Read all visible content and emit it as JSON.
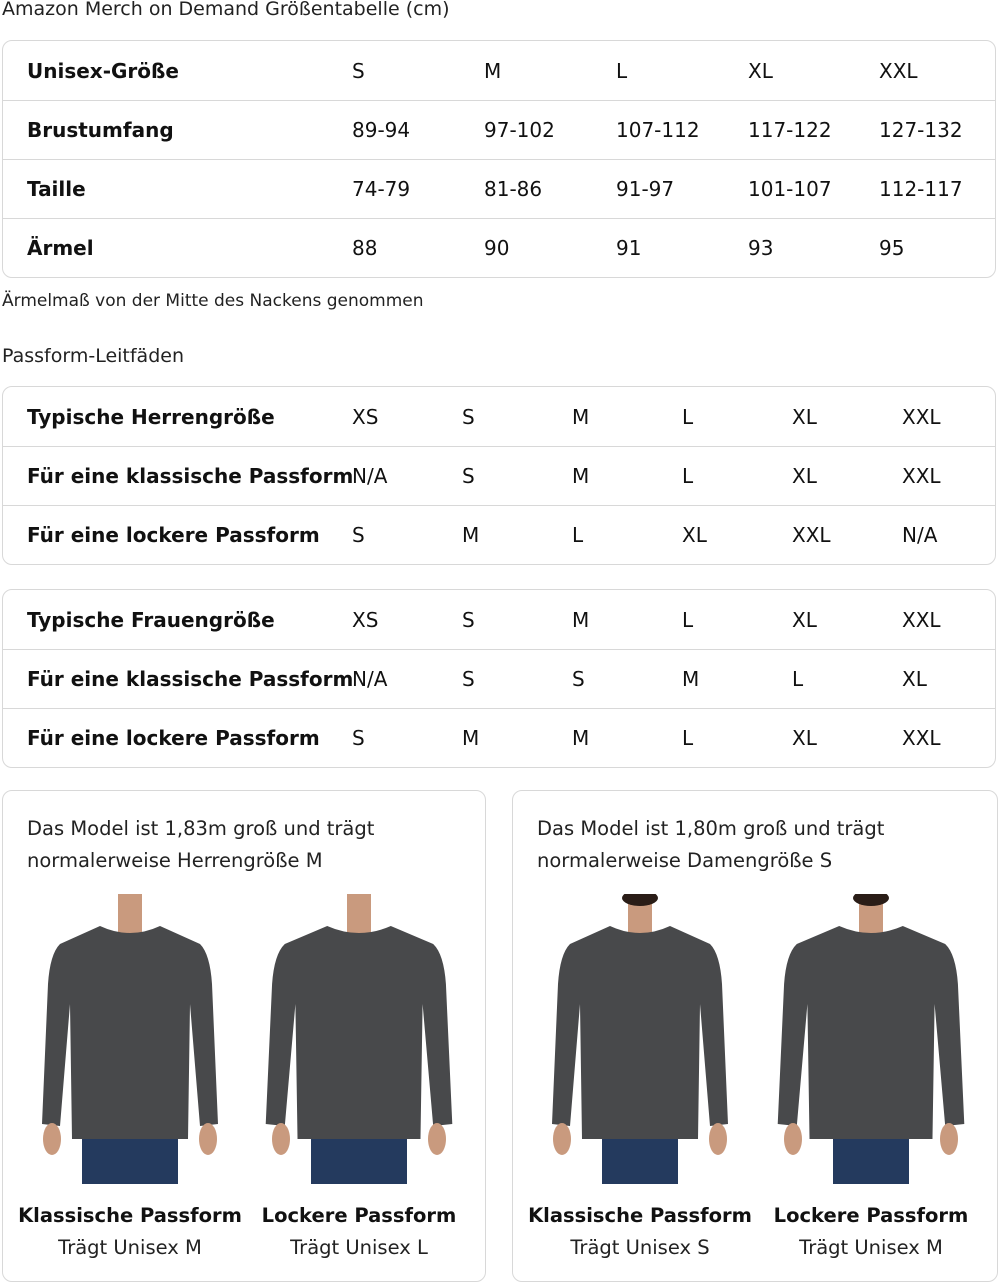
{
  "title": "Amazon Merch on Demand Größentabelle (cm)",
  "size_table": {
    "rows": [
      [
        "Unisex-Größe",
        "S",
        "M",
        "L",
        "XL",
        "XXL"
      ],
      [
        "Brustumfang",
        "89-94",
        "97-102",
        "107-112",
        "117-122",
        "127-132"
      ],
      [
        "Taille",
        "74-79",
        "81-86",
        "91-97",
        "101-107",
        "112-117"
      ],
      [
        "Ärmel",
        "88",
        "90",
        "91",
        "93",
        "95"
      ]
    ]
  },
  "note": "Ärmelmaß von der Mitte des Nackens genommen",
  "fit_heading": "Passform-Leitfäden",
  "men_table": {
    "rows": [
      [
        "Typische Herrengröße",
        "XS",
        "S",
        "M",
        "L",
        "XL",
        "XXL"
      ],
      [
        "Für eine klassische Passform",
        "N/A",
        "S",
        "M",
        "L",
        "XL",
        "XXL"
      ],
      [
        "Für eine lockere Passform",
        "S",
        "M",
        "L",
        "XL",
        "XXL",
        "N/A"
      ]
    ]
  },
  "women_table": {
    "rows": [
      [
        "Typische Frauengröße",
        "XS",
        "S",
        "M",
        "L",
        "XL",
        "XXL"
      ],
      [
        "Für eine klassische Passform",
        "N/A",
        "S",
        "S",
        "M",
        "L",
        "XL"
      ],
      [
        "Für eine lockere Passform",
        "S",
        "M",
        "M",
        "L",
        "XL",
        "XXL"
      ]
    ]
  },
  "cards": [
    {
      "caption_1": "Das Model ist 1,83m groß und trägt",
      "caption_2": "normalerweise Herrengröße M",
      "figures": [
        {
          "label": "Klassische Passform",
          "sub": "Trägt Unisex M"
        },
        {
          "label": "Lockere Passform",
          "sub": "Trägt Unisex L"
        }
      ]
    },
    {
      "caption_1": "Das Model ist 1,80m groß und trägt",
      "caption_2": "normalerweise Damengröße S",
      "figures": [
        {
          "label": "Klassische Passform",
          "sub": "Trägt Unisex S"
        },
        {
          "label": "Lockere Passform",
          "sub": "Trägt Unisex M"
        }
      ]
    }
  ],
  "colors": {
    "shirt": "#48494b",
    "jeans": "#243a5e",
    "skin": "#c99a7e",
    "border": "#d8d8d8"
  }
}
